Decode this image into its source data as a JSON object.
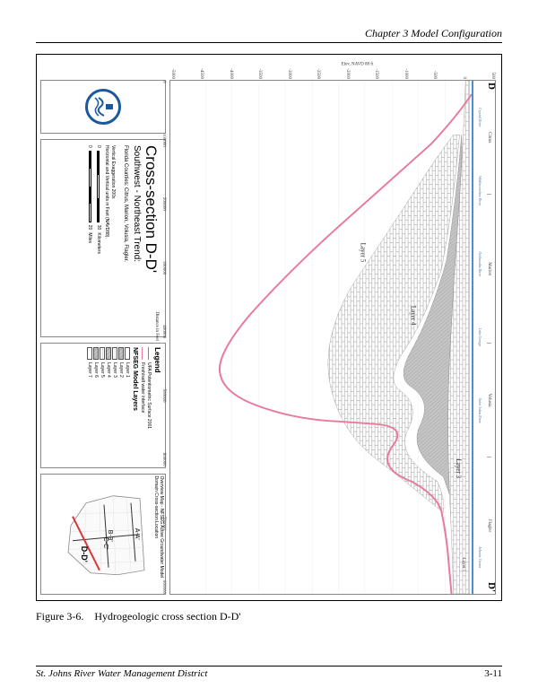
{
  "header": {
    "chapter": "Chapter 3 Model Configuration"
  },
  "caption": {
    "label": "Figure 3-6.",
    "text": "Hydrogeologic cross section D-D'"
  },
  "footer": {
    "org": "St. Johns River Water Management District",
    "page": "3-11"
  },
  "chart": {
    "endpoints": {
      "left": "D",
      "right": "D'"
    },
    "y_label": "Elev, NAVD 88 ft",
    "y_ticks": [
      "500",
      "0",
      "-500",
      "-1000",
      "-1500",
      "-2000",
      "-2500",
      "-3000",
      "-3500",
      "-4000",
      "-4500",
      "-5000"
    ],
    "x_label": "Distance in Feet",
    "x_ticks": [
      "0",
      "100000",
      "200000",
      "300000",
      "400000",
      "500000",
      "600000",
      "700000",
      "800000"
    ],
    "counties": [
      "Citrus",
      "Marion",
      "Volusia",
      "Flagler"
    ],
    "rivers": [
      "Crystal River",
      "Withlacoochee River",
      "Ocklawaha River",
      "Lake George",
      "Saint Johns River",
      "",
      "Atlantic Ocean"
    ],
    "layer_labels": {
      "l3": "Layer 3",
      "l4": "Layer 4",
      "l5": "Layer 5",
      "l1": "Layer 1"
    },
    "colors": {
      "surface_line": "#4a8fd4",
      "salt_interface": "#e87a9a",
      "layer1": "#ffffff",
      "layer2": "#d4d4d4",
      "layer3": "#ffffff",
      "layer4": "#b8b8b8",
      "layer5": "#ffffff",
      "layer6": "#c8c8c8",
      "layer7": "#ffffff",
      "grid": "#dddddd"
    }
  },
  "title_panel": {
    "main": "Cross-section D-D'",
    "sub": "Southwest - Northeast Trend:",
    "counties": "Florida Counties: Citrus, Marion, Volusia, Flagler.",
    "exag": "Vertical Exaggeration 200x",
    "units": "Horizontal and Vertical units in Feet (NAVD88).",
    "scale_km": {
      "ticks": [
        "0",
        "10",
        "20",
        "30"
      ],
      "unit": "Kilometers"
    },
    "scale_mi": {
      "ticks": [
        "0",
        "5",
        "10",
        "15",
        "20"
      ],
      "unit": "Miles"
    }
  },
  "legend": {
    "title": "Legend",
    "lines": [
      {
        "label": "UFA Potentiometric Surface 2001",
        "color": "#4a8fd4"
      },
      {
        "label": "Fresh/salt water interface",
        "color": "#e87a9a"
      }
    ],
    "group": "NFSEG Model Layers",
    "layers": [
      {
        "label": "Layer 1",
        "fill": "#ffffff",
        "pattern": "none"
      },
      {
        "label": "Layer 2",
        "fill": "#d4d4d4",
        "pattern": "hatch"
      },
      {
        "label": "Layer 3",
        "fill": "#ffffff",
        "pattern": "brick"
      },
      {
        "label": "Layer 4",
        "fill": "#b8b8b8",
        "pattern": "hatch"
      },
      {
        "label": "Layer 5",
        "fill": "#ffffff",
        "pattern": "brick"
      },
      {
        "label": "Layer 6",
        "fill": "#c8c8c8",
        "pattern": "hatch"
      },
      {
        "label": "Layer 7",
        "fill": "#ffffff",
        "pattern": "none"
      }
    ]
  },
  "overview_map": {
    "title": "Overview Map - NFSEG Active Groundwater Model Domain Cross-section Location",
    "sections": [
      "A-A'",
      "B-B'",
      "C-C'",
      "D-D'"
    ],
    "dd_color": "#d43a3a",
    "outline_color": "#888888",
    "county_line_color": "#cccccc"
  }
}
